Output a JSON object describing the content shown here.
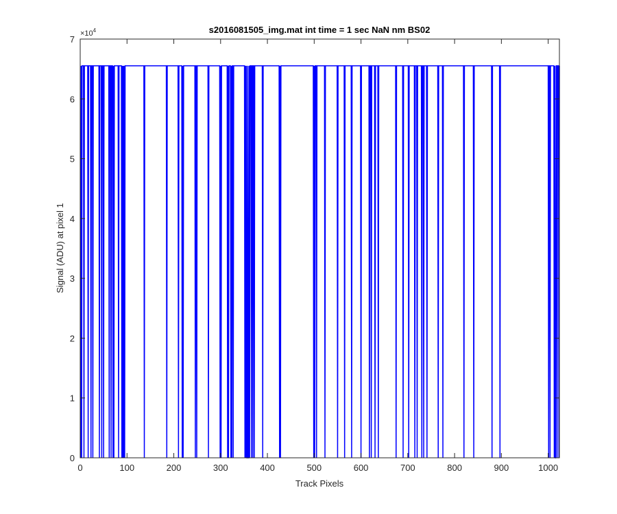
{
  "chart_data": {
    "type": "line",
    "title": "s2016081505_img.mat int time = 1 sec  NaN nm BS02",
    "xlabel": "Track Pixels",
    "ylabel": "Signal (ADU) at pixel 1",
    "xlim": [
      0,
      1024
    ],
    "ylim": [
      0,
      70000
    ],
    "x_ticks": [
      0,
      100,
      200,
      300,
      400,
      500,
      600,
      700,
      800,
      900,
      1000
    ],
    "y_ticks": [
      0,
      10000,
      20000,
      30000,
      40000,
      50000,
      60000,
      70000
    ],
    "y_tick_labels": [
      "0",
      "1",
      "2",
      "3",
      "4",
      "5",
      "6",
      "7"
    ],
    "y_exponent_base": "×10",
    "y_exponent_power": "4",
    "grid": false,
    "series": [
      {
        "color": "#0000ff",
        "high_value": 65535,
        "low_value": 0,
        "start_value": 0,
        "end_value": 65535,
        "x_start": 1,
        "x_end": 1024,
        "dropouts": [
          1,
          3,
          8,
          17,
          23,
          27,
          41,
          46,
          50,
          62,
          66,
          70,
          72,
          82,
          89,
          91,
          93,
          95,
          137,
          185,
          210,
          218,
          220,
          246,
          249,
          274,
          299,
          301,
          315,
          317,
          322,
          324,
          327,
          352,
          354,
          356,
          357,
          359,
          360,
          362,
          366,
          369,
          372,
          390,
          426,
          428,
          499,
          501,
          505,
          523,
          550,
          565,
          580,
          600,
          618,
          622,
          630,
          637,
          675,
          690,
          702,
          715,
          720,
          730,
          734,
          741,
          765,
          775,
          820,
          841,
          880,
          897,
          1001,
          1004,
          1013,
          1015,
          1016,
          1019,
          1023
        ]
      }
    ]
  }
}
